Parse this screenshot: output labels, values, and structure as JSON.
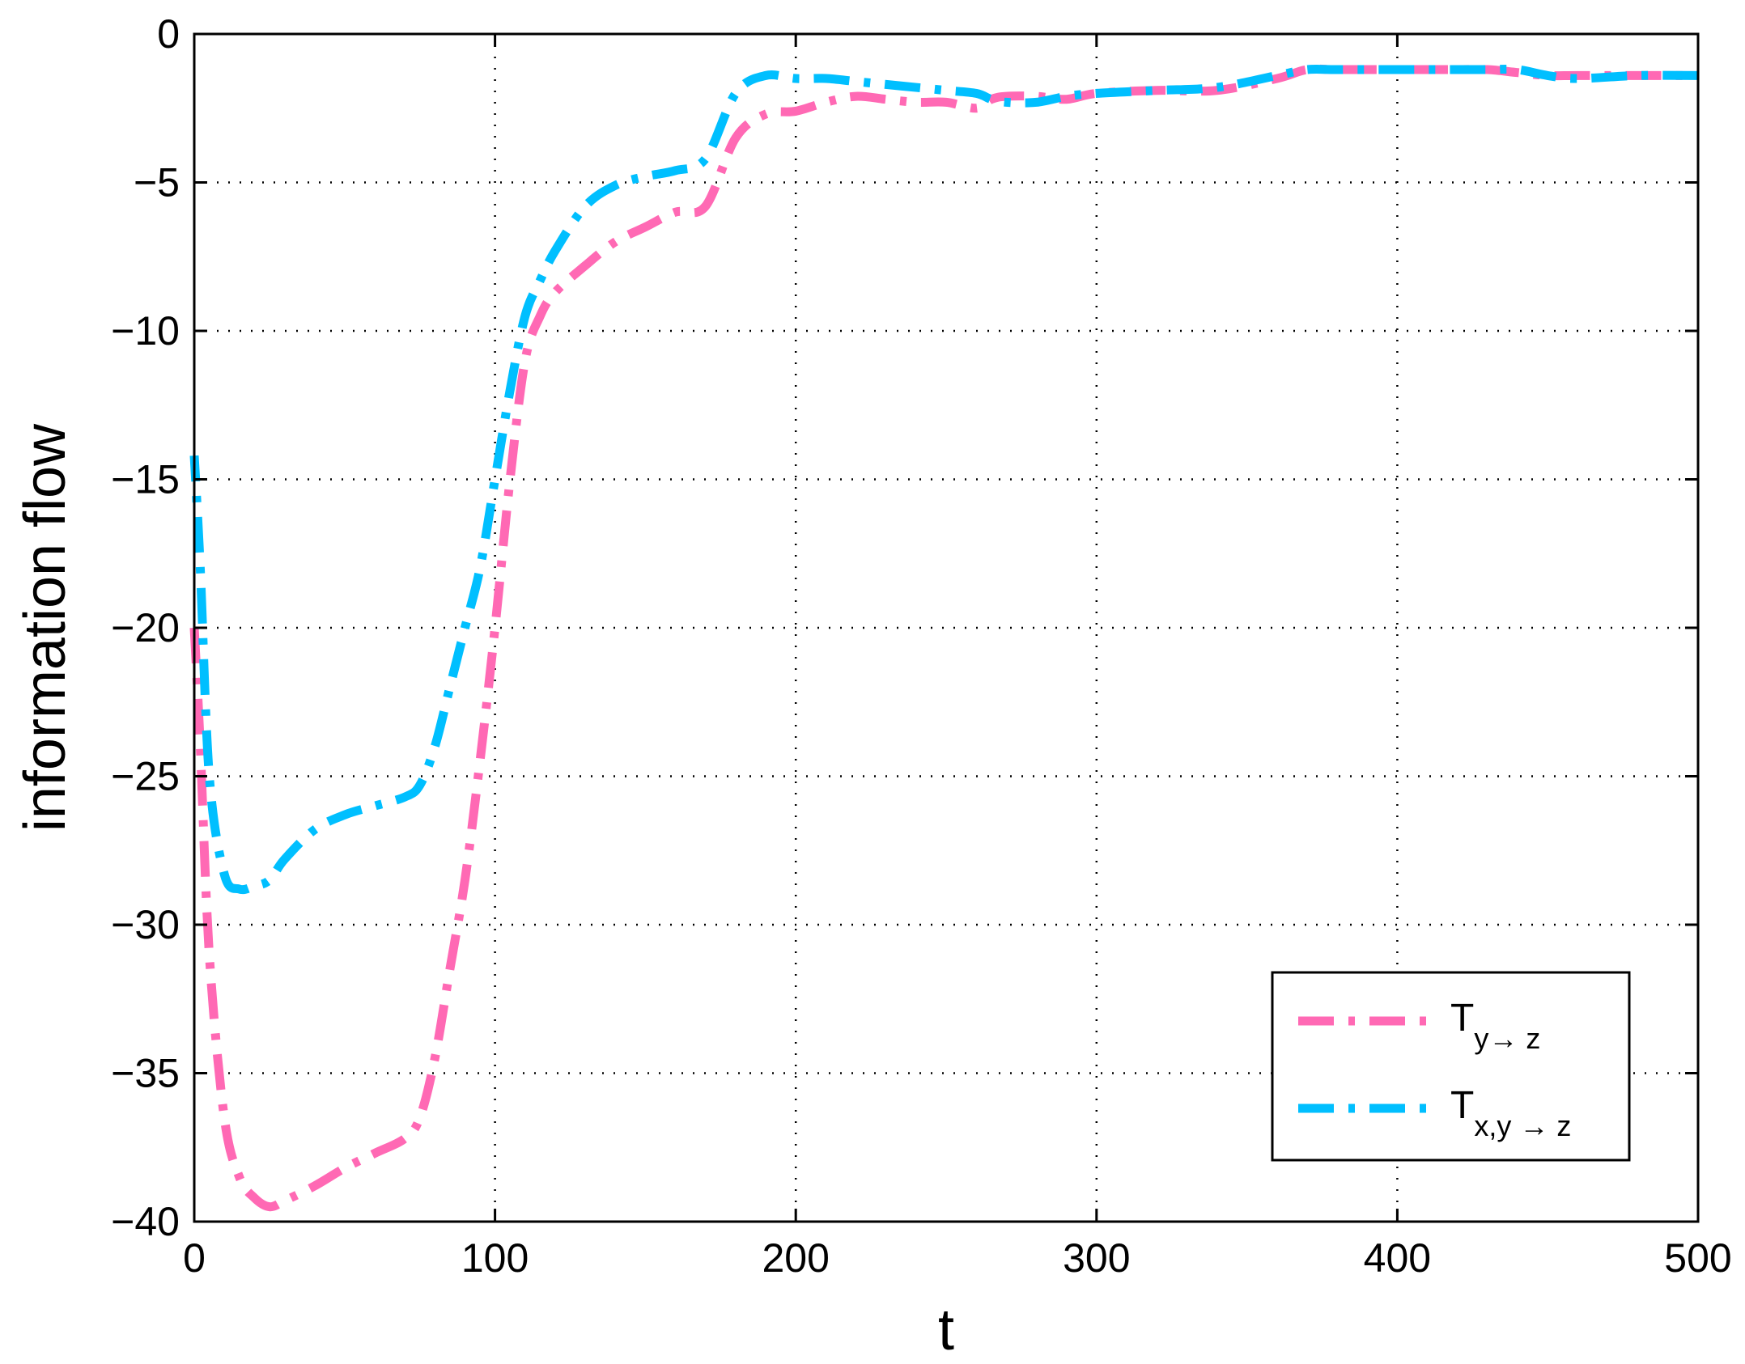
{
  "chart_data": {
    "type": "line",
    "title": "",
    "xlabel": "t",
    "ylabel": "information flow",
    "xlim": [
      0,
      500
    ],
    "ylim": [
      -40,
      0
    ],
    "xticks": [
      0,
      100,
      200,
      300,
      400,
      500
    ],
    "yticks": [
      0,
      -5,
      -10,
      -15,
      -20,
      -25,
      -30,
      -35,
      -40
    ],
    "xtick_labels": [
      "0",
      "100",
      "200",
      "300",
      "400",
      "500"
    ],
    "ytick_labels": [
      "0",
      "−5",
      "−10",
      "−15",
      "−20",
      "−25",
      "−30",
      "−35",
      "−40"
    ],
    "grid": true,
    "legend": "bottom-right",
    "series": [
      {
        "name": "T_{y→ z}",
        "label_main": "T",
        "label_sub": "y→ z",
        "color": "#ff69b4",
        "linestyle": "dash-dot",
        "x": [
          0,
          2,
          5,
          10,
          15,
          20,
          25,
          30,
          40,
          50,
          60,
          70,
          75,
          80,
          85,
          90,
          95,
          100,
          105,
          110,
          115,
          120,
          130,
          140,
          150,
          160,
          170,
          180,
          190,
          200,
          210,
          220,
          230,
          240,
          250,
          260,
          265,
          270,
          280,
          290,
          300,
          320,
          340,
          360,
          370,
          380,
          400,
          420,
          430,
          440,
          450,
          460,
          480,
          500
        ],
        "y": [
          -20,
          -24,
          -31,
          -36.5,
          -38.5,
          -39.2,
          -39.5,
          -39.3,
          -38.8,
          -38.2,
          -37.7,
          -37.2,
          -36.5,
          -34.5,
          -31.5,
          -28.5,
          -24.5,
          -20,
          -15,
          -11,
          -9.5,
          -8.7,
          -7.8,
          -7,
          -6.5,
          -6,
          -5.8,
          -3.5,
          -2.7,
          -2.6,
          -2.3,
          -2.1,
          -2.2,
          -2.3,
          -2.3,
          -2.5,
          -2.2,
          -2.1,
          -2.1,
          -2.2,
          -2,
          -1.9,
          -1.9,
          -1.5,
          -1.2,
          -1.2,
          -1.2,
          -1.2,
          -1.2,
          -1.3,
          -1.4,
          -1.4,
          -1.4,
          -1.4
        ]
      },
      {
        "name": "T_{x,y → z}",
        "label_main": "T",
        "label_sub": "x,y → z",
        "color": "#00bfff",
        "linestyle": "dash-dot",
        "x": [
          0,
          2,
          5,
          10,
          15,
          20,
          25,
          30,
          40,
          50,
          60,
          70,
          75,
          80,
          85,
          90,
          95,
          100,
          105,
          110,
          115,
          120,
          130,
          140,
          150,
          160,
          170,
          180,
          190,
          200,
          210,
          220,
          230,
          240,
          250,
          260,
          265,
          270,
          280,
          290,
          300,
          320,
          340,
          360,
          370,
          380,
          400,
          420,
          430,
          440,
          450,
          460,
          480,
          500
        ],
        "y": [
          -14.2,
          -18,
          -25,
          -28.3,
          -28.8,
          -28.7,
          -28.5,
          -27.8,
          -26.8,
          -26.3,
          -26,
          -25.7,
          -25.3,
          -24,
          -22,
          -20,
          -18,
          -15,
          -12,
          -9.5,
          -8.3,
          -7.3,
          -5.8,
          -5.1,
          -4.8,
          -4.6,
          -4.2,
          -2,
          -1.4,
          -1.5,
          -1.5,
          -1.6,
          -1.7,
          -1.8,
          -1.9,
          -2,
          -2.2,
          -2.3,
          -2.3,
          -2.1,
          -2,
          -1.9,
          -1.8,
          -1.4,
          -1.2,
          -1.2,
          -1.2,
          -1.2,
          -1.2,
          -1.2,
          -1.4,
          -1.5,
          -1.4,
          -1.4
        ]
      }
    ]
  }
}
